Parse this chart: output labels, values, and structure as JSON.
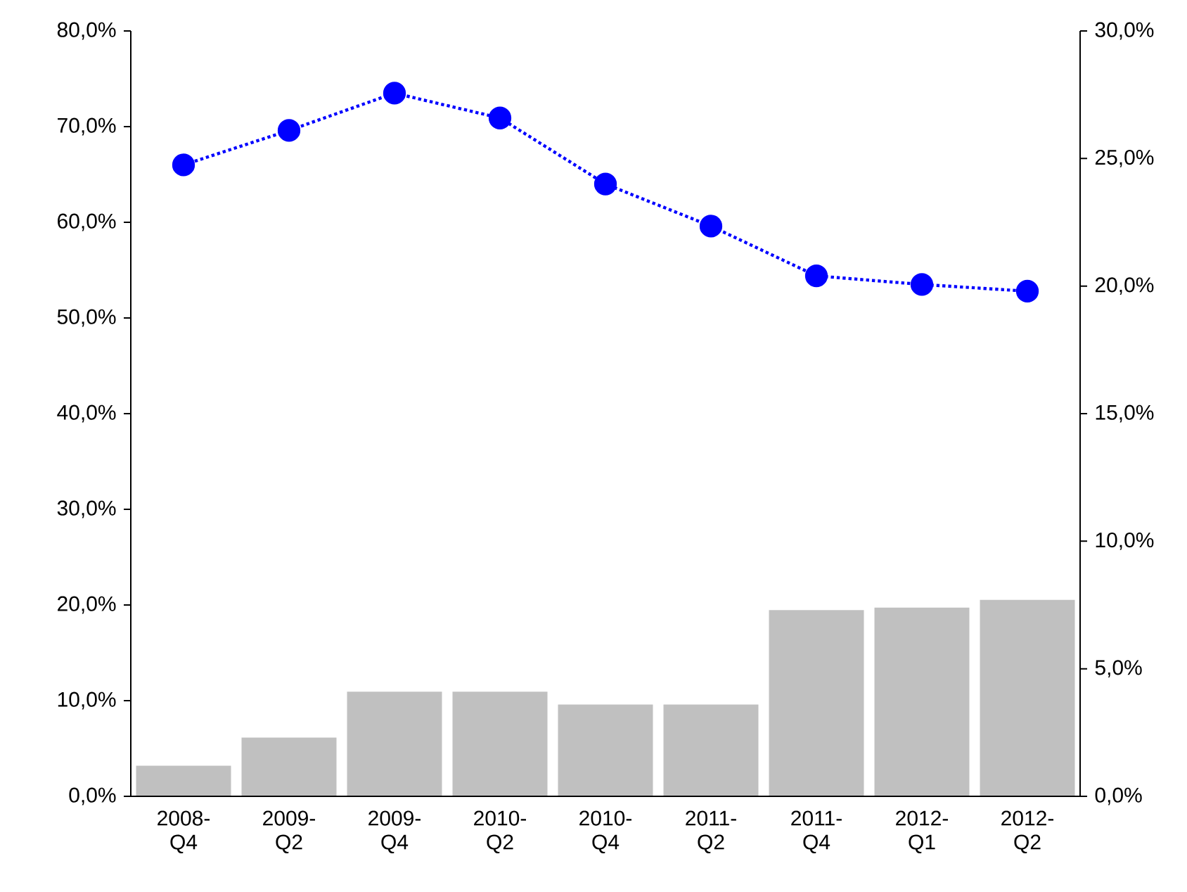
{
  "chart_data": {
    "type": "bar",
    "categories": [
      "2008-Q4",
      "2009-Q2",
      "2009-Q4",
      "2010-Q2",
      "2010-Q4",
      "2011-Q2",
      "2011-Q4",
      "2012-Q1",
      "2012-Q2"
    ],
    "series": [
      {
        "type": "line",
        "color": "#0000ff",
        "values": [
          66.0,
          69.6,
          73.5,
          70.9,
          64.0,
          59.6,
          54.4,
          53.5,
          52.8
        ]
      },
      {
        "axis": "y2",
        "color": "#c0c0c0",
        "values": [
          1.2,
          2.3,
          4.1,
          4.1,
          3.6,
          3.6,
          7.3,
          7.4,
          7.7
        ]
      }
    ],
    "marker": "circle",
    "line_style": "dotted",
    "ylim": [
      0,
      80
    ],
    "yticks": [
      {
        "value": 0,
        "label": "0,0%"
      },
      {
        "value": 10,
        "label": "10,0%"
      },
      {
        "value": 20,
        "label": "20,0%"
      },
      {
        "value": 30,
        "label": "30,0%"
      },
      {
        "value": 40,
        "label": "40,0%"
      },
      {
        "value": 50,
        "label": "50,0%"
      },
      {
        "value": 60,
        "label": "60,0%"
      },
      {
        "value": 70,
        "label": "70,0%"
      },
      {
        "value": 80,
        "label": "80,0%"
      }
    ],
    "y2lim": [
      0,
      30
    ],
    "y2ticks": [
      {
        "value": 0,
        "label": "0,0%"
      },
      {
        "value": 5,
        "label": "5,0%"
      },
      {
        "value": 10,
        "label": "10,0%"
      },
      {
        "value": 15,
        "label": "15,0%"
      },
      {
        "value": 20,
        "label": "20,0%"
      },
      {
        "value": 25,
        "label": "25,0%"
      },
      {
        "value": 30,
        "label": "30,0%"
      }
    ]
  }
}
